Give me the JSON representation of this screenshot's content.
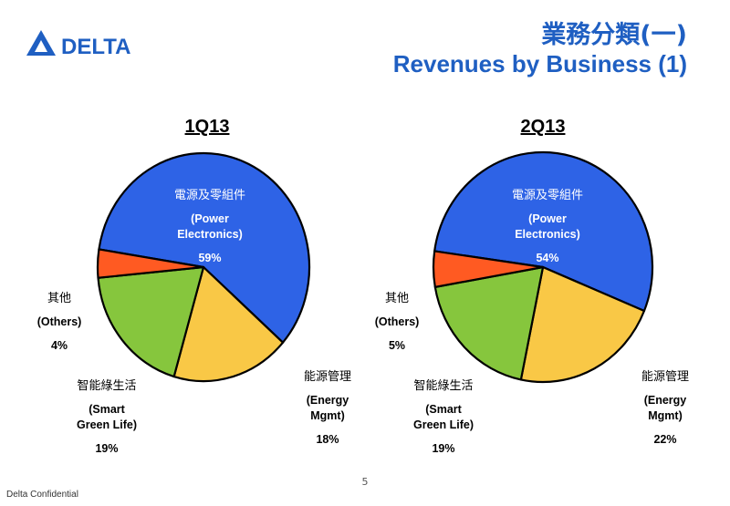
{
  "brand": {
    "name": "DELTA",
    "color": "#1f5fc2"
  },
  "title_zh": "業務分類(一)",
  "title_en": "Revenues by Business (1)",
  "colors": {
    "power": "#2e63e6",
    "energy": "#f9c846",
    "smart": "#86c63d",
    "others": "#ff5a22",
    "outline": "#000000"
  },
  "chart_data": [
    {
      "type": "pie",
      "title": "1Q13",
      "series": [
        {
          "zh": "電源及零組件",
          "name": "(Power Electronics)",
          "value": 59,
          "label": "59%"
        },
        {
          "zh": "能源管理",
          "name": "(Energy Mgmt)",
          "value": 18,
          "label": "18%"
        },
        {
          "zh": "智能綠生活",
          "name": "(Smart Green Life)",
          "value": 19,
          "label": "19%"
        },
        {
          "zh": "其他",
          "name": "(Others)",
          "value": 4,
          "label": "4%"
        }
      ]
    },
    {
      "type": "pie",
      "title": "2Q13",
      "series": [
        {
          "zh": "電源及零組件",
          "name": "(Power Electronics)",
          "value": 54,
          "label": "54%"
        },
        {
          "zh": "能源管理",
          "name": "(Energy Mgmt)",
          "value": 22,
          "label": "22%"
        },
        {
          "zh": "智能綠生活",
          "name": "(Smart Green Life)",
          "value": 19,
          "label": "19%"
        },
        {
          "zh": "其他",
          "name": "(Others)",
          "value": 5,
          "label": "5%"
        }
      ]
    }
  ],
  "labels": {
    "power_en1": "(Power",
    "power_en2": "Electronics)",
    "energy_en1": "(Energy",
    "energy_en2": "Mgmt)",
    "smart_en1": "(Smart",
    "smart_en2": "Green Life)",
    "others_en": "(Others)"
  },
  "page_number": "5",
  "footer": "Delta Confidential"
}
